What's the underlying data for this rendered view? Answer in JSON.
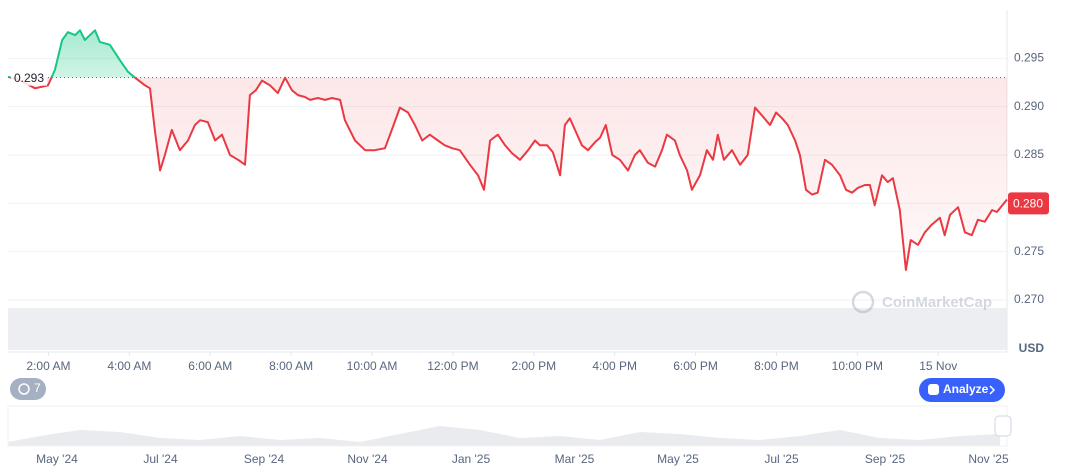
{
  "chart_data": {
    "type": "line",
    "x": [
      1.0,
      1.3,
      1.67,
      1.99,
      2.16,
      2.34,
      2.48,
      2.66,
      2.78,
      2.9,
      3.15,
      3.27,
      3.52,
      3.77,
      3.97,
      4.14,
      4.39,
      4.51,
      4.63,
      4.76,
      4.88,
      5.05,
      5.25,
      5.45,
      5.62,
      5.75,
      5.94,
      6.12,
      6.29,
      6.49,
      6.69,
      6.86,
      6.98,
      7.13,
      7.28,
      7.48,
      7.67,
      7.85,
      8.02,
      8.17,
      8.34,
      8.47,
      8.66,
      8.84,
      9.01,
      9.21,
      9.33,
      9.58,
      9.83,
      10.07,
      10.32,
      10.49,
      10.69,
      10.89,
      11.06,
      11.24,
      11.43,
      11.63,
      11.8,
      11.98,
      12.17,
      12.42,
      12.62,
      12.77,
      12.92,
      13.11,
      13.29,
      13.46,
      13.66,
      13.86,
      14.03,
      14.15,
      14.33,
      14.47,
      14.65,
      14.77,
      14.89,
      15.02,
      15.19,
      15.34,
      15.51,
      15.64,
      15.78,
      15.94,
      16.13,
      16.33,
      16.5,
      16.62,
      16.82,
      17.0,
      17.17,
      17.29,
      17.49,
      17.61,
      17.79,
      17.91,
      18.11,
      18.28,
      18.43,
      18.55,
      18.7,
      18.9,
      19.1,
      19.29,
      19.47,
      19.64,
      19.84,
      19.99,
      20.14,
      20.28,
      20.46,
      20.58,
      20.73,
      20.88,
      21.02,
      21.2,
      21.37,
      21.57,
      21.72,
      21.87,
      22.01,
      22.19,
      22.31,
      22.43,
      22.61,
      22.75,
      22.88,
      23.05,
      23.2,
      23.32,
      23.5,
      23.67,
      23.84,
      24.04,
      24.16,
      24.29,
      24.49,
      24.66,
      24.83,
      24.98,
      25.15,
      25.33,
      25.45,
      25.7
    ],
    "values": [
      0.2931,
      0.2927,
      0.2919,
      0.2922,
      0.2938,
      0.2969,
      0.2977,
      0.2974,
      0.2979,
      0.2969,
      0.2979,
      0.2967,
      0.2964,
      0.2948,
      0.2936,
      0.293,
      0.2922,
      0.2919,
      0.2876,
      0.2834,
      0.285,
      0.2876,
      0.2855,
      0.2865,
      0.2881,
      0.2886,
      0.2884,
      0.2865,
      0.2871,
      0.285,
      0.2845,
      0.284,
      0.2912,
      0.2917,
      0.2927,
      0.2922,
      0.2914,
      0.293,
      0.2917,
      0.2912,
      0.291,
      0.2907,
      0.2909,
      0.2907,
      0.2909,
      0.2907,
      0.2886,
      0.2865,
      0.2855,
      0.2855,
      0.2857,
      0.2876,
      0.2899,
      0.2894,
      0.2881,
      0.2865,
      0.2871,
      0.2865,
      0.286,
      0.2857,
      0.2855,
      0.284,
      0.2829,
      0.2814,
      0.2865,
      0.2871,
      0.286,
      0.2852,
      0.2845,
      0.2855,
      0.2865,
      0.286,
      0.286,
      0.2853,
      0.2829,
      0.2881,
      0.2888,
      0.2876,
      0.286,
      0.2855,
      0.2863,
      0.2868,
      0.2881,
      0.285,
      0.2845,
      0.2834,
      0.285,
      0.2855,
      0.2842,
      0.2838,
      0.2855,
      0.2871,
      0.2865,
      0.285,
      0.2834,
      0.2814,
      0.2829,
      0.2855,
      0.2845,
      0.2871,
      0.2845,
      0.2855,
      0.284,
      0.285,
      0.2899,
      0.2891,
      0.2881,
      0.2894,
      0.2888,
      0.2881,
      0.2865,
      0.285,
      0.2814,
      0.2809,
      0.2811,
      0.2845,
      0.284,
      0.2829,
      0.2814,
      0.2811,
      0.2816,
      0.2819,
      0.2819,
      0.2798,
      0.2829,
      0.2822,
      0.2826,
      0.2793,
      0.2731,
      0.2762,
      0.2757,
      0.277,
      0.2778,
      0.2785,
      0.2767,
      0.2788,
      0.2796,
      0.277,
      0.2767,
      0.2783,
      0.2781,
      0.2793,
      0.2791,
      0.2804
    ],
    "color_up": "#16c784",
    "color_down": "#ea3943",
    "xlim": [
      1,
      25.7
    ],
    "xticks": [
      {
        "value": 2,
        "label": "2:00 AM"
      },
      {
        "value": 4,
        "label": "4:00 AM"
      },
      {
        "value": 6,
        "label": "6:00 AM"
      },
      {
        "value": 8,
        "label": "8:00 AM"
      },
      {
        "value": 10,
        "label": "10:00 AM"
      },
      {
        "value": 12,
        "label": "12:00 PM"
      },
      {
        "value": 14,
        "label": "2:00 PM"
      },
      {
        "value": 16,
        "label": "4:00 PM"
      },
      {
        "value": 18,
        "label": "6:00 PM"
      },
      {
        "value": 20,
        "label": "8:00 PM"
      },
      {
        "value": 22,
        "label": "10:00 PM"
      },
      {
        "value": 24,
        "label": "15 Nov"
      }
    ],
    "ylim": [
      0.27,
      0.3
    ],
    "yticks": [
      {
        "value": 0.27,
        "label": "0.270"
      },
      0.275,
      {
        "value": 0.28,
        "label": "0.280"
      },
      0.285,
      {
        "value": 0.29,
        "label": "0.290"
      },
      0.295
    ],
    "grid": true,
    "baseline": 0.293,
    "current_price": {
      "value": 0.28,
      "label": "0.280"
    },
    "y_unit": "USD"
  },
  "ui": {
    "watermark": "CoinMarketCap",
    "analyze_button": "Analyze",
    "history_badge": "7",
    "navigator_labels": [
      "May '24",
      "Jul '24",
      "Sep '24",
      "Nov '24",
      "Jan '25",
      "Mar '25",
      "May '25",
      "Jul '25",
      "Sep '25",
      "Nov '25"
    ]
  }
}
